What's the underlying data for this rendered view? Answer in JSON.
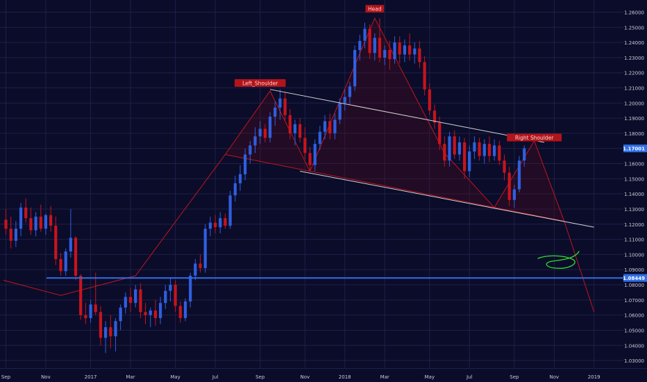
{
  "colors": {
    "background": "#0b0c2a",
    "grid": "#1e2047",
    "up": "#2f5fe0",
    "down": "#c8141c",
    "axis_text": "#c9cbd6",
    "support_line": "#2f6fe8",
    "pattern_line": "#c0161e",
    "pattern_fill": "rgba(120,10,20,0.22)",
    "trend_line": "#d6d6d6",
    "doodle": "#2ee02e",
    "label_bg": "#b3141a",
    "label_text": "#f2d6d6",
    "price_tag_bg": "#2f6fe8"
  },
  "chart_data": {
    "type": "candlestick",
    "symbol_hint": "weekly",
    "y_axis": {
      "side": "right",
      "ylim": [
        1.025,
        1.268
      ],
      "ticks": [
        "1.26000",
        "1.25000",
        "1.24000",
        "1.23000",
        "1.22000",
        "1.21000",
        "1.20000",
        "1.19000",
        "1.18000",
        "1.17000",
        "1.16000",
        "1.15000",
        "1.14000",
        "1.13000",
        "1.12000",
        "1.11000",
        "1.10000",
        "1.09000",
        "1.08000",
        "1.07000",
        "1.06000",
        "1.05000",
        "1.04000",
        "1.03000"
      ]
    },
    "x_axis": {
      "ticks": [
        {
          "label": "Sep",
          "t": 0
        },
        {
          "label": "Nov",
          "t": 8
        },
        {
          "label": "2017",
          "t": 17
        },
        {
          "label": "Mar",
          "t": 25
        },
        {
          "label": "May",
          "t": 34
        },
        {
          "label": "Jul",
          "t": 42
        },
        {
          "label": "Sep",
          "t": 51
        },
        {
          "label": "Nov",
          "t": 60
        },
        {
          "label": "2018",
          "t": 68
        },
        {
          "label": "Mar",
          "t": 76
        },
        {
          "label": "May",
          "t": 85
        },
        {
          "label": "Jul",
          "t": 93
        },
        {
          "label": "Sep",
          "t": 102
        },
        {
          "label": "Nov",
          "t": 110
        },
        {
          "label": "2019",
          "t": 118
        }
      ]
    },
    "price_tags": [
      {
        "label": "1.17001",
        "value": 1.17001
      },
      {
        "label": "1.08449",
        "value": 1.08449
      }
    ],
    "annotations": [
      {
        "text": "Left_Shoulder",
        "t": 51,
        "value": 1.213
      },
      {
        "text": "Head",
        "t": 74,
        "value": 1.262
      },
      {
        "text": "Right Shoulder",
        "t": 106,
        "value": 1.177
      }
    ],
    "support_level": 1.08449,
    "pattern": {
      "outline": [
        [
          -0.5,
          1.083
        ],
        [
          11,
          1.073
        ],
        [
          26,
          1.086
        ],
        [
          44,
          1.166
        ],
        [
          53,
          1.208
        ],
        [
          61,
          1.155
        ],
        [
          74,
          1.256
        ],
        [
          88,
          1.167
        ],
        [
          98,
          1.131
        ],
        [
          106,
          1.175
        ],
        [
          112,
          1.122
        ],
        [
          118,
          1.062
        ]
      ],
      "neckline": [
        [
          44,
          1.166
        ],
        [
          112,
          1.122
        ]
      ],
      "upper_trend": [
        [
          53,
          1.209
        ],
        [
          108,
          1.174
        ]
      ],
      "lower_trend": [
        [
          59,
          1.155
        ],
        [
          118,
          1.118
        ]
      ]
    },
    "candles": [
      {
        "o": 1.123,
        "h": 1.13,
        "l": 1.113,
        "c": 1.117
      },
      {
        "o": 1.117,
        "h": 1.125,
        "l": 1.104,
        "c": 1.109
      },
      {
        "o": 1.109,
        "h": 1.122,
        "l": 1.105,
        "c": 1.117
      },
      {
        "o": 1.117,
        "h": 1.134,
        "l": 1.112,
        "c": 1.131
      },
      {
        "o": 1.131,
        "h": 1.137,
        "l": 1.121,
        "c": 1.124
      },
      {
        "o": 1.124,
        "h": 1.131,
        "l": 1.113,
        "c": 1.116
      },
      {
        "o": 1.116,
        "h": 1.128,
        "l": 1.112,
        "c": 1.125
      },
      {
        "o": 1.125,
        "h": 1.133,
        "l": 1.115,
        "c": 1.117
      },
      {
        "o": 1.117,
        "h": 1.127,
        "l": 1.113,
        "c": 1.126
      },
      {
        "o": 1.126,
        "h": 1.132,
        "l": 1.115,
        "c": 1.119
      },
      {
        "o": 1.119,
        "h": 1.125,
        "l": 1.093,
        "c": 1.097
      },
      {
        "o": 1.097,
        "h": 1.101,
        "l": 1.086,
        "c": 1.089
      },
      {
        "o": 1.089,
        "h": 1.104,
        "l": 1.086,
        "c": 1.102
      },
      {
        "o": 1.102,
        "h": 1.13,
        "l": 1.098,
        "c": 1.111
      },
      {
        "o": 1.111,
        "h": 1.112,
        "l": 1.083,
        "c": 1.086
      },
      {
        "o": 1.086,
        "h": 1.087,
        "l": 1.057,
        "c": 1.06
      },
      {
        "o": 1.06,
        "h": 1.068,
        "l": 1.054,
        "c": 1.058
      },
      {
        "o": 1.058,
        "h": 1.07,
        "l": 1.055,
        "c": 1.067
      },
      {
        "o": 1.067,
        "h": 1.088,
        "l": 1.06,
        "c": 1.062
      },
      {
        "o": 1.062,
        "h": 1.066,
        "l": 1.04,
        "c": 1.045
      },
      {
        "o": 1.045,
        "h": 1.056,
        "l": 1.035,
        "c": 1.052
      },
      {
        "o": 1.052,
        "h": 1.06,
        "l": 1.038,
        "c": 1.046
      },
      {
        "o": 1.046,
        "h": 1.058,
        "l": 1.036,
        "c": 1.056
      },
      {
        "o": 1.056,
        "h": 1.067,
        "l": 1.05,
        "c": 1.065
      },
      {
        "o": 1.065,
        "h": 1.075,
        "l": 1.061,
        "c": 1.072
      },
      {
        "o": 1.072,
        "h": 1.078,
        "l": 1.062,
        "c": 1.068
      },
      {
        "o": 1.068,
        "h": 1.08,
        "l": 1.065,
        "c": 1.077
      },
      {
        "o": 1.077,
        "h": 1.081,
        "l": 1.058,
        "c": 1.062
      },
      {
        "o": 1.062,
        "h": 1.068,
        "l": 1.054,
        "c": 1.06
      },
      {
        "o": 1.06,
        "h": 1.065,
        "l": 1.052,
        "c": 1.063
      },
      {
        "o": 1.063,
        "h": 1.07,
        "l": 1.053,
        "c": 1.058
      },
      {
        "o": 1.058,
        "h": 1.072,
        "l": 1.054,
        "c": 1.068
      },
      {
        "o": 1.068,
        "h": 1.08,
        "l": 1.064,
        "c": 1.076
      },
      {
        "o": 1.076,
        "h": 1.085,
        "l": 1.069,
        "c": 1.08
      },
      {
        "o": 1.08,
        "h": 1.083,
        "l": 1.062,
        "c": 1.066
      },
      {
        "o": 1.066,
        "h": 1.069,
        "l": 1.055,
        "c": 1.058
      },
      {
        "o": 1.058,
        "h": 1.071,
        "l": 1.056,
        "c": 1.069
      },
      {
        "o": 1.069,
        "h": 1.088,
        "l": 1.065,
        "c": 1.086
      },
      {
        "o": 1.086,
        "h": 1.097,
        "l": 1.083,
        "c": 1.094
      },
      {
        "o": 1.094,
        "h": 1.1,
        "l": 1.088,
        "c": 1.091
      },
      {
        "o": 1.091,
        "h": 1.12,
        "l": 1.088,
        "c": 1.117
      },
      {
        "o": 1.117,
        "h": 1.125,
        "l": 1.112,
        "c": 1.121
      },
      {
        "o": 1.121,
        "h": 1.126,
        "l": 1.114,
        "c": 1.118
      },
      {
        "o": 1.118,
        "h": 1.128,
        "l": 1.114,
        "c": 1.124
      },
      {
        "o": 1.124,
        "h": 1.127,
        "l": 1.117,
        "c": 1.119
      },
      {
        "o": 1.119,
        "h": 1.142,
        "l": 1.117,
        "c": 1.139
      },
      {
        "o": 1.139,
        "h": 1.152,
        "l": 1.135,
        "c": 1.147
      },
      {
        "o": 1.147,
        "h": 1.159,
        "l": 1.142,
        "c": 1.153
      },
      {
        "o": 1.153,
        "h": 1.17,
        "l": 1.149,
        "c": 1.166
      },
      {
        "o": 1.166,
        "h": 1.175,
        "l": 1.16,
        "c": 1.172
      },
      {
        "o": 1.172,
        "h": 1.184,
        "l": 1.167,
        "c": 1.178
      },
      {
        "o": 1.178,
        "h": 1.188,
        "l": 1.173,
        "c": 1.183
      },
      {
        "o": 1.183,
        "h": 1.186,
        "l": 1.174,
        "c": 1.177
      },
      {
        "o": 1.177,
        "h": 1.194,
        "l": 1.174,
        "c": 1.191
      },
      {
        "o": 1.191,
        "h": 1.201,
        "l": 1.185,
        "c": 1.197
      },
      {
        "o": 1.197,
        "h": 1.209,
        "l": 1.189,
        "c": 1.203
      },
      {
        "o": 1.203,
        "h": 1.207,
        "l": 1.188,
        "c": 1.192
      },
      {
        "o": 1.192,
        "h": 1.196,
        "l": 1.176,
        "c": 1.18
      },
      {
        "o": 1.18,
        "h": 1.189,
        "l": 1.172,
        "c": 1.186
      },
      {
        "o": 1.186,
        "h": 1.19,
        "l": 1.174,
        "c": 1.177
      },
      {
        "o": 1.177,
        "h": 1.184,
        "l": 1.163,
        "c": 1.167
      },
      {
        "o": 1.167,
        "h": 1.171,
        "l": 1.155,
        "c": 1.159
      },
      {
        "o": 1.159,
        "h": 1.176,
        "l": 1.155,
        "c": 1.173
      },
      {
        "o": 1.173,
        "h": 1.185,
        "l": 1.169,
        "c": 1.181
      },
      {
        "o": 1.181,
        "h": 1.192,
        "l": 1.176,
        "c": 1.188
      },
      {
        "o": 1.188,
        "h": 1.193,
        "l": 1.176,
        "c": 1.18
      },
      {
        "o": 1.18,
        "h": 1.193,
        "l": 1.176,
        "c": 1.189
      },
      {
        "o": 1.189,
        "h": 1.203,
        "l": 1.186,
        "c": 1.2
      },
      {
        "o": 1.2,
        "h": 1.209,
        "l": 1.195,
        "c": 1.204
      },
      {
        "o": 1.204,
        "h": 1.214,
        "l": 1.199,
        "c": 1.211
      },
      {
        "o": 1.211,
        "h": 1.238,
        "l": 1.208,
        "c": 1.235
      },
      {
        "o": 1.235,
        "h": 1.245,
        "l": 1.228,
        "c": 1.241
      },
      {
        "o": 1.241,
        "h": 1.253,
        "l": 1.236,
        "c": 1.249
      },
      {
        "o": 1.249,
        "h": 1.252,
        "l": 1.229,
        "c": 1.233
      },
      {
        "o": 1.233,
        "h": 1.246,
        "l": 1.228,
        "c": 1.243
      },
      {
        "o": 1.243,
        "h": 1.256,
        "l": 1.227,
        "c": 1.23
      },
      {
        "o": 1.23,
        "h": 1.238,
        "l": 1.225,
        "c": 1.235
      },
      {
        "o": 1.235,
        "h": 1.241,
        "l": 1.222,
        "c": 1.229
      },
      {
        "o": 1.229,
        "h": 1.244,
        "l": 1.226,
        "c": 1.24
      },
      {
        "o": 1.24,
        "h": 1.244,
        "l": 1.226,
        "c": 1.232
      },
      {
        "o": 1.232,
        "h": 1.242,
        "l": 1.227,
        "c": 1.238
      },
      {
        "o": 1.238,
        "h": 1.246,
        "l": 1.228,
        "c": 1.232
      },
      {
        "o": 1.232,
        "h": 1.24,
        "l": 1.226,
        "c": 1.236
      },
      {
        "o": 1.236,
        "h": 1.241,
        "l": 1.223,
        "c": 1.227
      },
      {
        "o": 1.227,
        "h": 1.231,
        "l": 1.205,
        "c": 1.209
      },
      {
        "o": 1.209,
        "h": 1.213,
        "l": 1.192,
        "c": 1.195
      },
      {
        "o": 1.195,
        "h": 1.199,
        "l": 1.183,
        "c": 1.187
      },
      {
        "o": 1.187,
        "h": 1.191,
        "l": 1.169,
        "c": 1.173
      },
      {
        "o": 1.173,
        "h": 1.178,
        "l": 1.158,
        "c": 1.162
      },
      {
        "o": 1.162,
        "h": 1.181,
        "l": 1.158,
        "c": 1.178
      },
      {
        "o": 1.178,
        "h": 1.182,
        "l": 1.163,
        "c": 1.166
      },
      {
        "o": 1.166,
        "h": 1.178,
        "l": 1.162,
        "c": 1.174
      },
      {
        "o": 1.174,
        "h": 1.177,
        "l": 1.15,
        "c": 1.155
      },
      {
        "o": 1.155,
        "h": 1.172,
        "l": 1.151,
        "c": 1.168
      },
      {
        "o": 1.168,
        "h": 1.178,
        "l": 1.163,
        "c": 1.174
      },
      {
        "o": 1.174,
        "h": 1.177,
        "l": 1.162,
        "c": 1.165
      },
      {
        "o": 1.165,
        "h": 1.176,
        "l": 1.16,
        "c": 1.173
      },
      {
        "o": 1.173,
        "h": 1.178,
        "l": 1.161,
        "c": 1.165
      },
      {
        "o": 1.165,
        "h": 1.176,
        "l": 1.162,
        "c": 1.172
      },
      {
        "o": 1.172,
        "h": 1.175,
        "l": 1.159,
        "c": 1.162
      },
      {
        "o": 1.162,
        "h": 1.166,
        "l": 1.149,
        "c": 1.154
      },
      {
        "o": 1.154,
        "h": 1.158,
        "l": 1.132,
        "c": 1.136
      },
      {
        "o": 1.136,
        "h": 1.146,
        "l": 1.131,
        "c": 1.143
      },
      {
        "o": 1.143,
        "h": 1.165,
        "l": 1.141,
        "c": 1.162
      },
      {
        "o": 1.162,
        "h": 1.172,
        "l": 1.158,
        "c": 1.17
      }
    ]
  }
}
